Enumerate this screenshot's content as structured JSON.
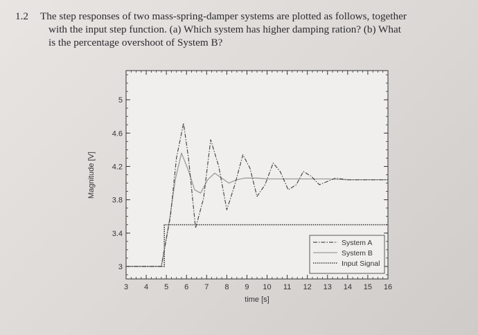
{
  "question": {
    "number": "1.2",
    "lines": [
      "The step responses of two mass-spring-damper systems are plotted as follows, together",
      "with the input step function.   (a) Which system has higher damping ration?   (b) What",
      "is the percentage overshoot of System B?"
    ]
  },
  "colors": {
    "ink": "#333333",
    "plot_bg": "#f1efee",
    "system_a": "#4a4a4a",
    "system_b": "#9a9a9a",
    "input_signal": "#333333"
  },
  "chart_data": {
    "type": "line",
    "title": "",
    "xlabel": "time  [s]",
    "ylabel": "Magnitude  [V]",
    "xlim": [
      3,
      16
    ],
    "ylim": [
      2.85,
      5.35
    ],
    "x_ticks": [
      "3",
      "4",
      "5",
      "6",
      "7",
      "8",
      "9",
      "10",
      "11",
      "12",
      "13",
      "14",
      "15",
      "16"
    ],
    "y_ticks": [
      "3",
      "3.4",
      "3.8",
      "4.2",
      "4.6",
      "5"
    ],
    "grid": false,
    "legend": {
      "position": "bottom-right",
      "entries": [
        "System A",
        "System B",
        "Input Signal"
      ]
    },
    "series": [
      {
        "name": "System A",
        "style": "dash-dot",
        "x": [
          3,
          4.75,
          5.2,
          5.5,
          5.85,
          6.1,
          6.45,
          6.85,
          7.2,
          7.6,
          8.0,
          8.4,
          8.8,
          9.15,
          9.5,
          9.9,
          10.3,
          10.65,
          11.05,
          11.45,
          11.8,
          12.2,
          12.6,
          13.0,
          13.4,
          14.0,
          15.0,
          16.0
        ],
        "y": [
          3.0,
          3.0,
          3.6,
          4.3,
          4.72,
          4.3,
          3.46,
          3.82,
          4.52,
          4.2,
          3.68,
          3.98,
          4.34,
          4.18,
          3.84,
          3.98,
          4.24,
          4.14,
          3.92,
          3.98,
          4.14,
          4.08,
          3.98,
          4.02,
          4.06,
          4.04,
          4.04,
          4.04
        ]
      },
      {
        "name": "System B",
        "style": "solid",
        "x": [
          3,
          4.75,
          5.15,
          5.45,
          5.75,
          6.1,
          6.4,
          6.7,
          7.05,
          7.4,
          7.75,
          8.1,
          8.5,
          8.9,
          9.5,
          10.0,
          11.0,
          12.0,
          13.0,
          14.0,
          16.0
        ],
        "y": [
          3.0,
          3.0,
          3.55,
          4.05,
          4.36,
          4.15,
          3.92,
          3.88,
          4.04,
          4.12,
          4.06,
          4.0,
          4.04,
          4.06,
          4.06,
          4.05,
          4.05,
          4.05,
          4.05,
          4.04,
          4.04
        ]
      },
      {
        "name": "Input Signal",
        "style": "dotted",
        "x": [
          3,
          4.9,
          4.9,
          16
        ],
        "y": [
          3.0,
          3.0,
          3.5,
          3.5
        ]
      }
    ]
  }
}
